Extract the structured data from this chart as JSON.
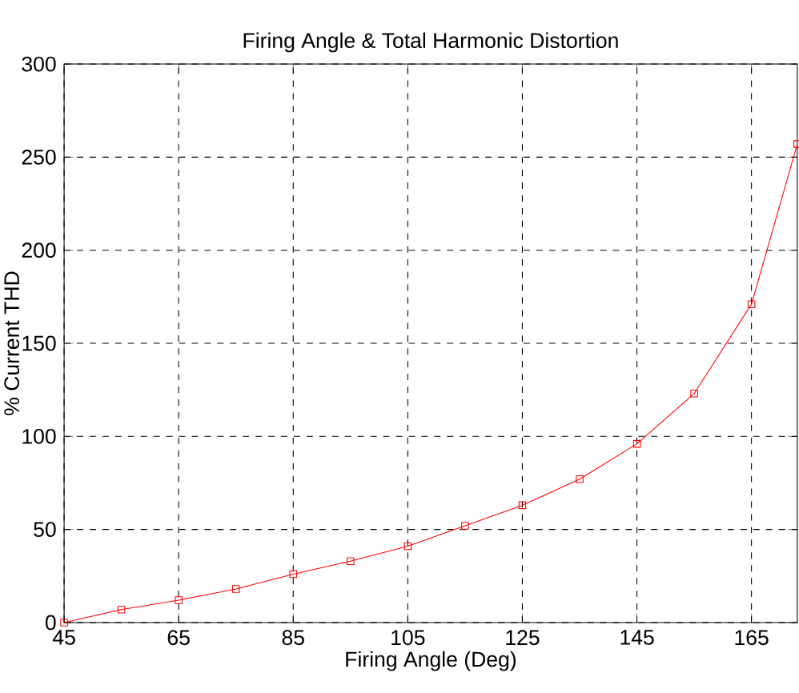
{
  "chart_data": {
    "type": "line",
    "title": "Firing Angle & Total Harmonic Distortion",
    "xlabel": "Firing Angle (Deg)",
    "ylabel": "% Current THD",
    "x": [
      45,
      55,
      65,
      75,
      85,
      95,
      105,
      115,
      125,
      135,
      145,
      155,
      165,
      173
    ],
    "series": [
      {
        "color": "#ff0000",
        "values": [
          0,
          7,
          12,
          18,
          26,
          33,
          41,
          52,
          63,
          77,
          96,
          123,
          171,
          257
        ]
      }
    ],
    "xlim": [
      45,
      173
    ],
    "ylim": [
      0,
      300
    ],
    "xticks": [
      45,
      65,
      85,
      105,
      125,
      145,
      165
    ],
    "yticks": [
      0,
      50,
      100,
      150,
      200,
      250,
      300
    ],
    "grid": true,
    "marker": "square",
    "line_style": "solid"
  }
}
